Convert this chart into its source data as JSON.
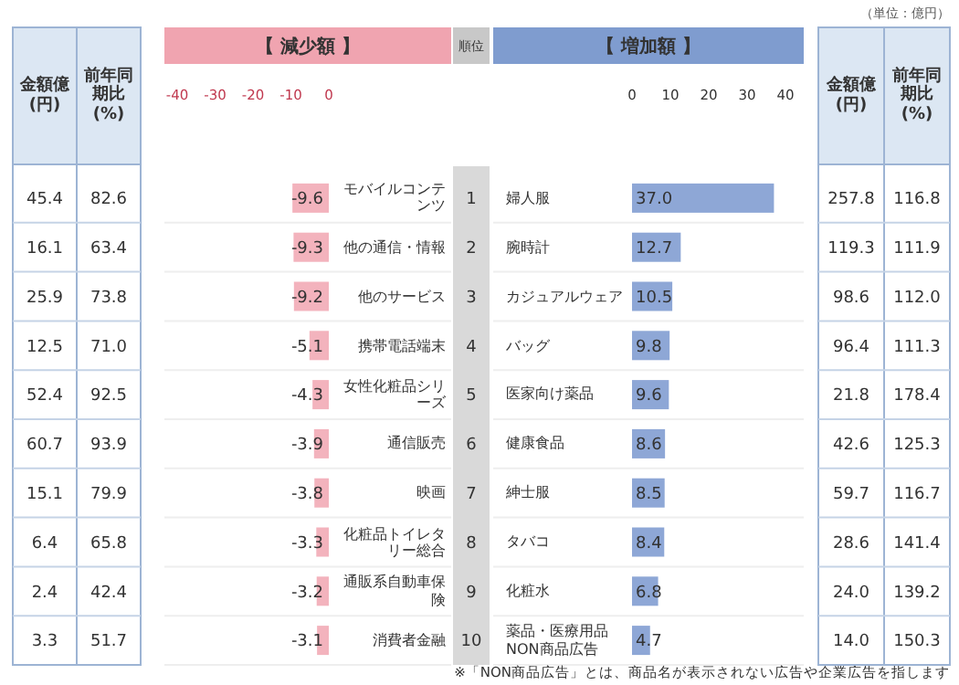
{
  "chart_data": [
    {
      "type": "other",
      "annotations": [
        "金額億(円)",
        "前年同期比(%)",
        "45.4",
        "82.6",
        "16.1",
        "63.4",
        "25.9",
        "73.8",
        "12.5",
        "71.0",
        "52.4",
        "92.5",
        "60.7",
        "93.9",
        "15.1",
        "79.9",
        "6.4",
        "65.8",
        "2.4",
        "42.4",
        "3.3",
        "51.7"
      ]
    },
    {
      "type": "bar",
      "orientation": "horizontal",
      "title": "【 減少額 】",
      "color": "#f3b3bd",
      "xlim": [
        -40,
        0
      ],
      "xticks": [
        -40,
        -30,
        -20,
        -10,
        0
      ],
      "categories": [
        "モバイルコンテンツ",
        "他の通信・情報",
        "他のサービス",
        "携帯電話端末",
        "女性化粧品シリーズ",
        "通信販売",
        "映画",
        "化粧品トイレタリー総合",
        "通販系自動車保険",
        "消費者金融"
      ],
      "values": [
        -9.6,
        -9.3,
        -9.2,
        -5.1,
        -4.3,
        -3.9,
        -3.8,
        -3.3,
        -3.2,
        -3.1
      ],
      "value_labels": [
        "-9.6",
        "-9.3",
        "-9.2",
        "-5.1",
        "-4.3",
        "-3.9",
        "-3.8",
        "-3.3",
        "-3.2",
        "-3.1"
      ],
      "annotations": [
        "順位",
        "1",
        "2",
        "3",
        "4",
        "5",
        "6",
        "7",
        "8",
        "9",
        "10"
      ]
    },
    {
      "type": "bar",
      "orientation": "horizontal",
      "title": "【 増加額 】",
      "color": "#8ea7d6",
      "xlim": [
        0,
        40
      ],
      "xticks": [
        0,
        10,
        20,
        30,
        40
      ],
      "categories": [
        "婦人服",
        "腕時計",
        "カジュアルウェア",
        "バッグ",
        "医家向け薬品",
        "健康食品",
        "紳士服",
        "タバコ",
        "化粧水",
        "薬品・医療用品NON商品広告"
      ],
      "values": [
        37.0,
        12.7,
        10.5,
        9.8,
        9.6,
        8.6,
        8.5,
        8.4,
        6.8,
        4.7
      ],
      "value_labels": [
        "37.0",
        "12.7",
        "10.5",
        "9.8",
        "9.6",
        "8.6",
        "8.5",
        "8.4",
        "6.8",
        "4.7"
      ],
      "annotations": [
        "※「NON商品広告」とは、商品名が表示されない広告や企業広告を指します"
      ]
    },
    {
      "type": "other",
      "subtitle": "（単位：億円）",
      "annotations": [
        "金額億(円)",
        "前年同期比(%)",
        "257.8",
        "116.8",
        "119.3",
        "111.9",
        "98.6",
        "112.0",
        "96.4",
        "111.3",
        "21.8",
        "178.4",
        "42.6",
        "125.3",
        "59.7",
        "116.7",
        "28.6",
        "141.4",
        "24.0",
        "139.2",
        "14.0",
        "150.3"
      ]
    }
  ]
}
